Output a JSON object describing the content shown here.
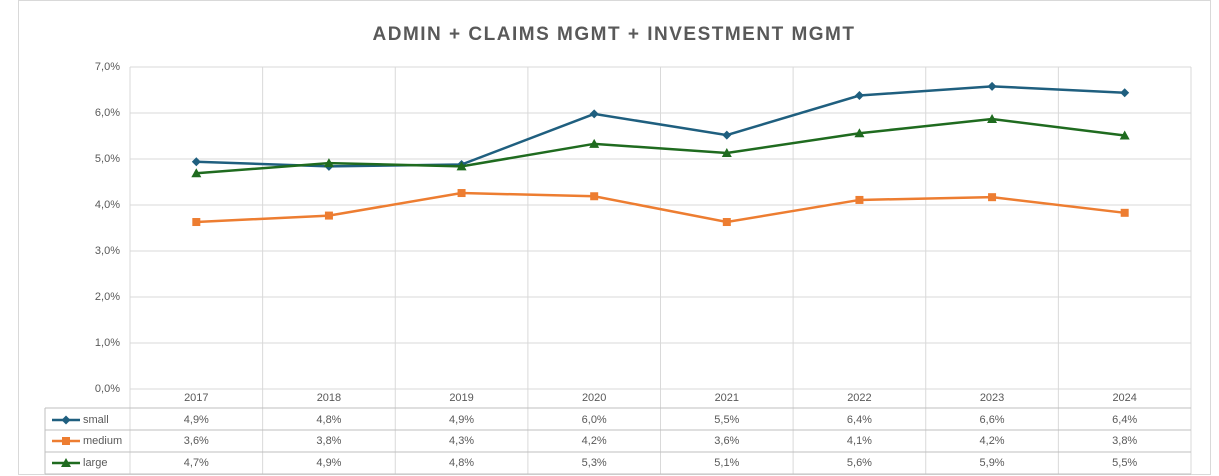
{
  "chart_data": {
    "type": "line",
    "title": "ADMIN + CLAIMS MGMT + INVESTMENT MGMT",
    "categories": [
      "2017",
      "2018",
      "2019",
      "2020",
      "2021",
      "2022",
      "2023",
      "2024"
    ],
    "series": [
      {
        "name": "small",
        "color": "#1f5f7f",
        "marker": "diamond",
        "values": [
          4.94,
          4.84,
          4.88,
          5.98,
          5.52,
          6.38,
          6.58,
          6.44
        ],
        "value_labels": [
          "4,9%",
          "4,8%",
          "4,9%",
          "6,0%",
          "5,5%",
          "6,4%",
          "6,6%",
          "6,4%"
        ]
      },
      {
        "name": "medium",
        "color": "#ed7d31",
        "marker": "square",
        "values": [
          3.63,
          3.77,
          4.26,
          4.19,
          3.63,
          4.11,
          4.17,
          3.83
        ],
        "value_labels": [
          "3,6%",
          "3,8%",
          "4,3%",
          "4,2%",
          "3,6%",
          "4,1%",
          "4,2%",
          "3,8%"
        ]
      },
      {
        "name": "large",
        "color": "#1f6b1f",
        "marker": "triangle",
        "values": [
          4.69,
          4.91,
          4.84,
          5.33,
          5.13,
          5.56,
          5.87,
          5.51
        ],
        "value_labels": [
          "4,7%",
          "4,9%",
          "4,8%",
          "5,3%",
          "5,1%",
          "5,6%",
          "5,9%",
          "5,5%"
        ]
      }
    ],
    "ylim": [
      0,
      7
    ],
    "yticks": [
      {
        "value": 0,
        "label": "0,0%"
      },
      {
        "value": 1,
        "label": "1,0%"
      },
      {
        "value": 2,
        "label": "2,0%"
      },
      {
        "value": 3,
        "label": "3,0%"
      },
      {
        "value": 4,
        "label": "4,0%"
      },
      {
        "value": 5,
        "label": "5,0%"
      },
      {
        "value": 6,
        "label": "6,0%"
      },
      {
        "value": 7,
        "label": "7,0%"
      }
    ],
    "grid": true
  }
}
